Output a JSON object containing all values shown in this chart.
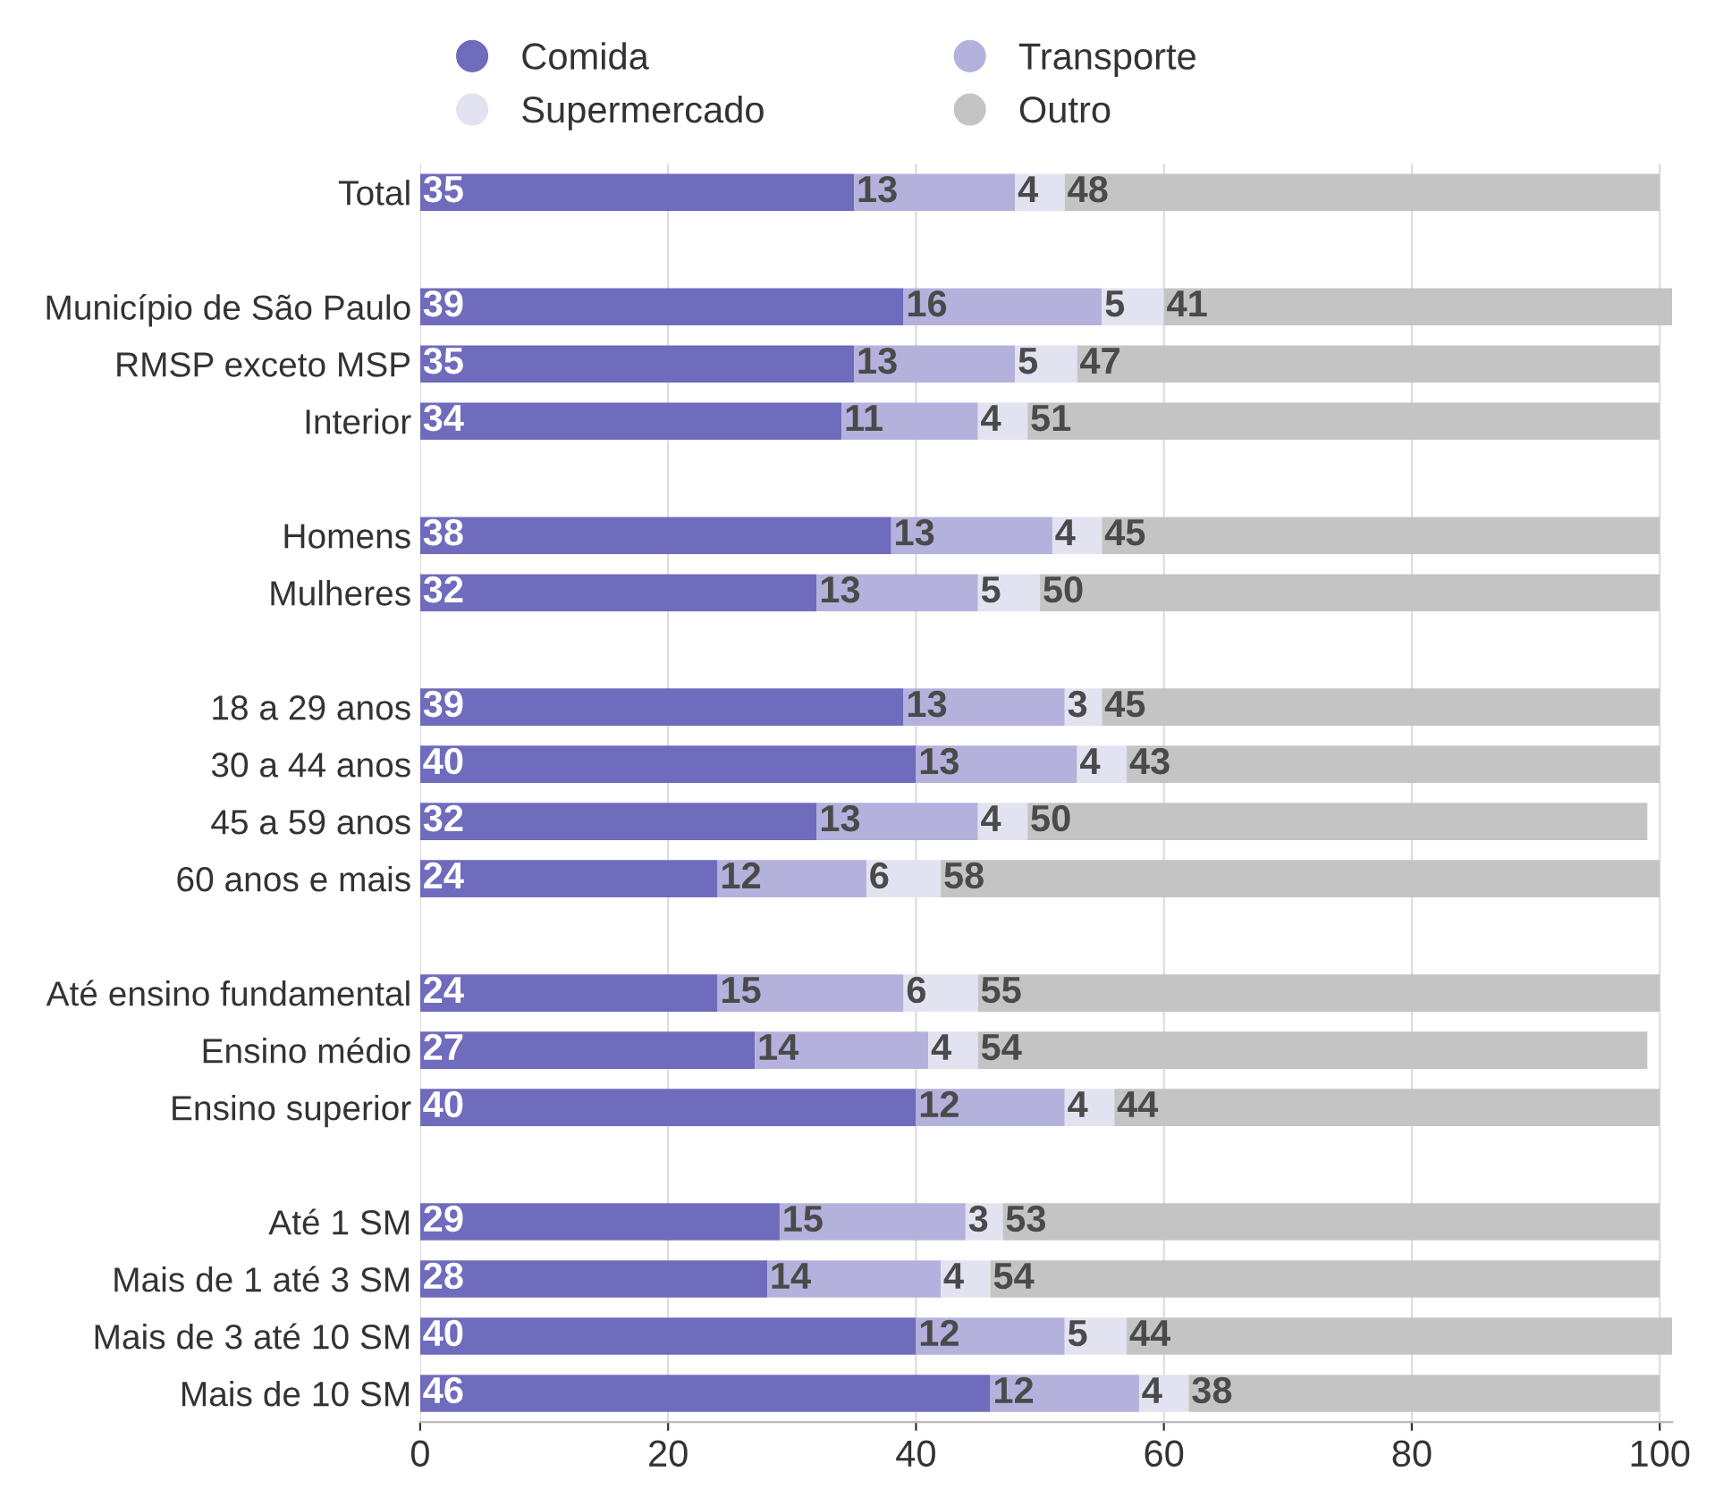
{
  "chart_data": {
    "type": "bar",
    "orientation": "horizontal",
    "stacked": true,
    "categories": [
      "Total",
      null,
      "Município de São Paulo",
      "RMSP exceto MSP",
      "Interior",
      null,
      "Homens",
      "Mulheres",
      null,
      "18 a 29 anos",
      "30 a 44 anos",
      "45 a 59 anos",
      "60 anos e mais",
      null,
      "Até ensino fundamental",
      "Ensino médio",
      "Ensino superior",
      null,
      "Até 1 SM",
      "Mais de 1 até 3 SM",
      "Mais de 3 até 10 SM",
      "Mais de 10 SM"
    ],
    "series": [
      {
        "name": "Comida",
        "color": "#6f6bbd",
        "values": [
          35,
          null,
          39,
          35,
          34,
          null,
          38,
          32,
          null,
          39,
          40,
          32,
          24,
          null,
          24,
          27,
          40,
          null,
          29,
          28,
          40,
          46
        ]
      },
      {
        "name": "Transporte",
        "color": "#b4b1dc",
        "values": [
          13,
          null,
          16,
          13,
          11,
          null,
          13,
          13,
          null,
          13,
          13,
          13,
          12,
          null,
          15,
          14,
          12,
          null,
          15,
          14,
          12,
          12
        ]
      },
      {
        "name": "Supermercado",
        "color": "#e3e2f1",
        "values": [
          4,
          null,
          5,
          5,
          4,
          null,
          4,
          5,
          null,
          3,
          4,
          4,
          6,
          null,
          6,
          4,
          4,
          null,
          3,
          4,
          5,
          4
        ]
      },
      {
        "name": "Outro",
        "color": "#c4c4c4",
        "values": [
          48,
          null,
          41,
          47,
          51,
          null,
          45,
          50,
          null,
          45,
          43,
          50,
          58,
          null,
          55,
          54,
          44,
          null,
          53,
          54,
          44,
          38
        ]
      }
    ],
    "xlim": [
      0,
      101
    ],
    "xticks": [
      0,
      20,
      40,
      60,
      80,
      100
    ],
    "grid": "x",
    "legend": "top",
    "data_labels": true
  }
}
